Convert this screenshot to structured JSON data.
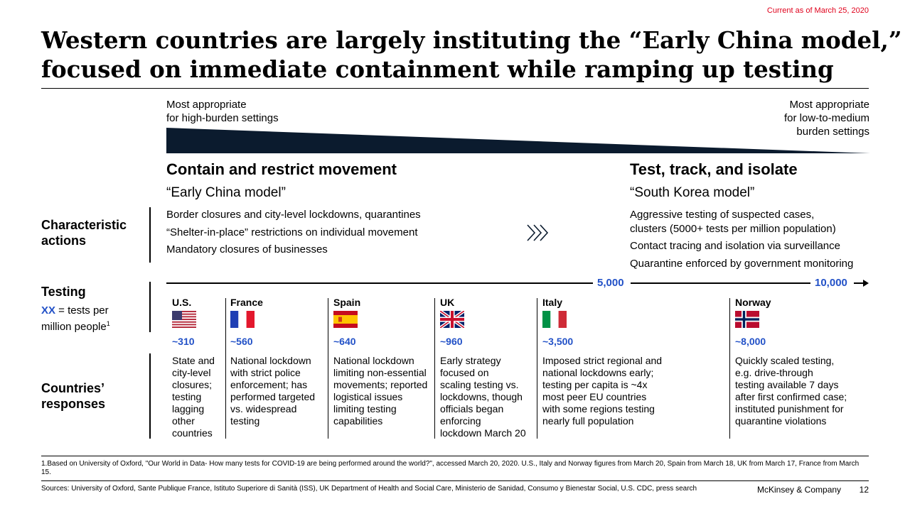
{
  "date_note": "Current as of March 25, 2020",
  "title": {
    "line1": "Western countries are largely instituting the “Early China model,”",
    "line2": "focused on immediate containment while ramping up testing"
  },
  "spectrum": {
    "left_line1": "Most appropriate",
    "left_line2": "for high-burden settings",
    "right_line1": "Most appropriate",
    "right_line2": "for low-to-medium",
    "right_line3": "burden settings"
  },
  "models": {
    "left": {
      "heading": "Contain and restrict movement",
      "subheading": "“Early China model”",
      "actions": [
        "Border closures and city-level lockdowns, quarantines",
        "“Shelter-in-place” restrictions on individual movement",
        "Mandatory closures of businesses"
      ]
    },
    "right": {
      "heading": "Test, track, and isolate",
      "subheading": "“South Korea model”",
      "actions": [
        "Aggressive testing of suspected cases,",
        "clusters (5000+ tests per million population)",
        "Contact tracing and isolation via surveillance",
        "Quarantine enforced by government monitoring"
      ]
    }
  },
  "row_labels": {
    "characteristic_line1": "Characteristic",
    "characteristic_line2": "actions",
    "testing": "Testing",
    "testing_xx": "XX",
    "testing_desc1": " = tests per",
    "testing_desc2": "million people",
    "testing_sup": "1",
    "responses_line1": "Countries’",
    "responses_line2": "responses"
  },
  "scale": {
    "mark1": "5,000",
    "mark2": "10,000"
  },
  "countries": [
    {
      "name": "U.S.",
      "tests": "~310",
      "flag": "us-flag",
      "response": [
        "State and",
        "city-level",
        "closures;",
        "testing",
        "lagging",
        "other",
        "countries"
      ]
    },
    {
      "name": "France",
      "tests": "~560",
      "flag": "france-flag",
      "response": [
        "National lockdown",
        "with strict police",
        "enforcement; has",
        "performed targeted",
        "vs. widespread",
        "testing"
      ]
    },
    {
      "name": "Spain",
      "tests": "~640",
      "flag": "spain-flag",
      "response": [
        "National lockdown",
        "limiting non-essential",
        "movements; reported",
        "logistical issues",
        "limiting testing",
        "capabilities"
      ]
    },
    {
      "name": "UK",
      "tests": "~960",
      "flag": "uk-flag",
      "response": [
        "Early strategy",
        "focused on",
        "scaling testing vs.",
        "lockdowns, though",
        "officials began",
        "enforcing",
        "lockdown March 20"
      ]
    },
    {
      "name": "Italy",
      "tests": "~3,500",
      "flag": "italy-flag",
      "response": [
        "Imposed strict regional and",
        "national lockdowns early;",
        "testing per capita is ~4x",
        "most peer EU countries",
        "with some regions testing",
        "nearly full population"
      ]
    },
    {
      "name": "Norway",
      "tests": "~8,000",
      "flag": "norway-flag",
      "response": [
        "Quickly scaled testing,",
        "e.g. drive-through",
        "testing available 7 days",
        "after first confirmed case;",
        "instituted punishment for",
        "quarantine violations"
      ]
    }
  ],
  "footnote": "1.Based on University of Oxford, \"Our World in Data- How many tests for COVID-19 are being performed around the world?\", accessed March 20, 2020. U.S., Italy and Norway figures from March 20, Spain from March 18, UK from March 17, France from March 15.",
  "sources": "Sources: University of Oxford, Sante Publique France, Istituto Superiore di Sanità (ISS), UK Department of Health and Social Care, Ministerio de Sanidad, Consumo y Bienestar Social, U.S. CDC, press search",
  "brand": "McKinsey & Company",
  "page_number": "12",
  "colors": {
    "accent_blue": "#2251c7",
    "date_red": "#e0001b",
    "wedge_navy": "#0b1b2e"
  }
}
